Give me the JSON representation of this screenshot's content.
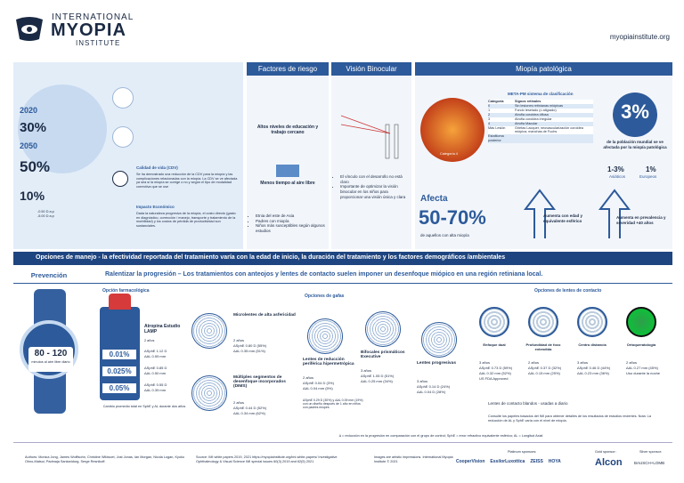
{
  "header": {
    "logo": [
      "INTERNATIONAL",
      "MYOPIA",
      "INSTITUTE"
    ],
    "url": "myopiainstitute.org"
  },
  "prevalence": {
    "year1": "2020",
    "value1": "30%",
    "year2": "2050",
    "value2": "50%",
    "high": "10%",
    "legend1": "-0.50 D a.p",
    "legend2": "-5.00 D a.p"
  },
  "impact": {
    "quality_title": "Calidad de vida (CDV)",
    "quality_text": "Se ha demostrado una reducción de la CDV para la miopía y las complicaciones relacionadas con la miopía. La CDV se ve afectada ya sea si la miopía se corrige o no y según el tipo de modalidad correctiva que se use",
    "economic_title": "Impacto Económico",
    "economic_text": "Dada la naturaleza progresiva de la miopía, el costo directo (gasto en diagnóstico, corrección / manejo, transporte y tratamiento de la morbilidad) y los costos de pérdida de productividad son sustanciales."
  },
  "risk": {
    "title": "Factores de riesgo",
    "item1": "Altos niveles de educación y trabajo cercano",
    "item2": "Menos tiempo al aire libre",
    "bullets": [
      "Etnia del este de Asia",
      "Padres con miopía",
      "Niños más susceptibles según algunos estudios"
    ]
  },
  "binocular": {
    "title": "Visión Binocular",
    "bullets": [
      "El vínculo con el desarrollo no está claro",
      "Importante de optimizar la visión binocular en los niños para proporcionar una visión única y clara"
    ]
  },
  "pathologic": {
    "title": "Miopía patológica",
    "table_title": "META-PM sistema de clasificación",
    "image_label": "Categoría 4",
    "rows": [
      [
        "Categoría",
        "Signos retinales"
      ],
      [
        "0",
        "Sin lesiones retinianas miópicas"
      ],
      [
        "1",
        "Fondo teselado (o atigrado)"
      ],
      [
        "2",
        "Atrofia coroidea difusa"
      ],
      [
        "3",
        "Atrofia coroidea irregular"
      ],
      [
        "4",
        "Atrofia Macular"
      ],
      [
        "Más Lesión",
        "Grietas Lacquer, neovascularización coroidea miópica, manchas de Fuchs"
      ],
      [
        "Estafiloma posterior",
        ""
      ]
    ],
    "world_value": "3%",
    "world_text": "de la población mundial se ve afectada por la miopía patológica",
    "asian_value": "1-3%",
    "asian_label": "Asiáticos",
    "euro_value": "1%",
    "euro_label": "Europeos",
    "affects": "Afecta",
    "affects_value": "50-70%",
    "affects_text": "de aquellos con alta miopía",
    "arrow1": "Aumenta con edad y equivalente esférico",
    "arrow2": "Aumenta en prevalencia y severidad +40 años"
  },
  "management": {
    "banner": "Opciones de manejo  - la efectividad reportada del tratamiento varía con la edad de inicio, la duración del tratamiento y los factores demográficos /ambientales",
    "prevention": {
      "title": "Prevención",
      "value": "80 - 120",
      "text": "minutos al aire libre diario"
    },
    "slowing": "Ralentizar la progresión – Los tratamientos con anteojos y lentes de contacto suelen imponer un desenfoque miópico en una región retiniana local.",
    "pharma": {
      "title": "Opción farmacológica",
      "name": "Atropina Estudio LAMP",
      "years": "2 años",
      "rows": [
        {
          "dose": "0.01%",
          "sph": "ΔSphE 1.12 D",
          "al": "ΔAL 0.59 mm"
        },
        {
          "dose": "0.025%",
          "sph": "ΔSphE 0.85 D",
          "al": "ΔAL 0.50 mm"
        },
        {
          "dose": "0.05%",
          "sph": "ΔSphE 0.55 D",
          "al": "ΔAL 0.39 mm"
        }
      ],
      "note": "Cambio promedio total en SphE y AL durante dos años"
    },
    "spectacles": {
      "title": "Opciones de gafas",
      "items": [
        {
          "name": "Microlentes de alta asfericidad",
          "years": "2 años",
          "sph": "ΔSphE 0.80 D (55%)",
          "al": "ΔAL 0.35 mm (51%)"
        },
        {
          "name": "Múltiples segmentos de desenfoque incorporados (DIMS)",
          "years": "2 años",
          "sph": "ΔSphE 0.44 D (52%)",
          "al": "ΔAL 0.34 mm (62%)"
        },
        {
          "name": "Lentes de reducción periférica hipermetrópica",
          "years": "2 años",
          "sph": "ΔSphE 0.04 D (3%)",
          "al": "ΔAL 0.04 mm (5%)"
        },
        {
          "name": "Bifocales prismáticos Executive",
          "years": "3 años",
          "sph": "ΔSphE 1.05 D (51%)",
          "al": "ΔAL 0.25 mm (34%)"
        },
        {
          "name": "Lentes progresivas",
          "years": "3 años",
          "sph": "ΔSphE 0.14 D (24%)",
          "al": "ΔAL 0.04 D (28%)"
        }
      ],
      "note": "ΔSphE 0.29 D (30%) y ΔAL 0.09 mm (19%) con un diseño después de 1 año en niños con padres miopes"
    },
    "contacts": {
      "title": "Opciones de lentes de contacto",
      "items": [
        {
          "name": "Enfoque dual",
          "years": "3 años",
          "sph": "ΔSphE 0.73 D (59%)",
          "al": "ΔAL 0.32 mm (52%)",
          "extra": "US FDA Approved"
        },
        {
          "name": "Profundidad de foco extendida",
          "years": "2 años",
          "sph": "ΔSphE 0.37 D (32%)",
          "al": "ΔAL 0.15 mm (25%)",
          "extra": ""
        },
        {
          "name": "Centro distancia",
          "years": "3 años",
          "sph": "ΔSphE 0.46 D (44%)",
          "al": "ΔAL 0.23 mm (36%)",
          "extra": ""
        },
        {
          "name": "Ortoqueratología",
          "years": "2 años",
          "sph": "ΔAL 0.27 mm (45%)",
          "al": "Uso durante la noche",
          "extra": ""
        }
      ],
      "soft": "Lentes de contacto blandos - usadas a diario",
      "note": "Consulte los papeles basados del IMI para obtener detalles de los resultados de estudios recientes. Nota: La reducción de AL y SphE varía con el nivel de miopía."
    },
    "footnote": "Δ = reducción en la progresión en comparación con el grupo de control; SphE = error refractivo equivalente esférico; AL = Longitud Axial"
  },
  "footer": {
    "authors": "Authors: Monica Jong, James Wolffsohn, Christine Wildsoet, Jost Jonas, Ian Morgan, Nicola Logan, Kyoko Ohno-Matsui, Padmaja Sankaridurg, Serge Resnikoff.",
    "source": "Source: IMI white papers 2019, 2021 https://myopiainstitute.org/imi-white-papers/ Investigative Ophthalmology & Visual Science IMI special issues 60(3) 2019 and 62(5) 2021",
    "images": "Images are artistic impressions. International Myopia Institute © 2021",
    "platinum": "Platinum sponsors:",
    "platinum_names": [
      "CooperVision",
      "EssilorLuxottica",
      "ZEISS",
      "HOYA"
    ],
    "gold": "Gold sponsor:",
    "gold_name": "Alcon",
    "silver": "Silver sponsor:",
    "silver_name": "BAUSCH+LOMB"
  }
}
